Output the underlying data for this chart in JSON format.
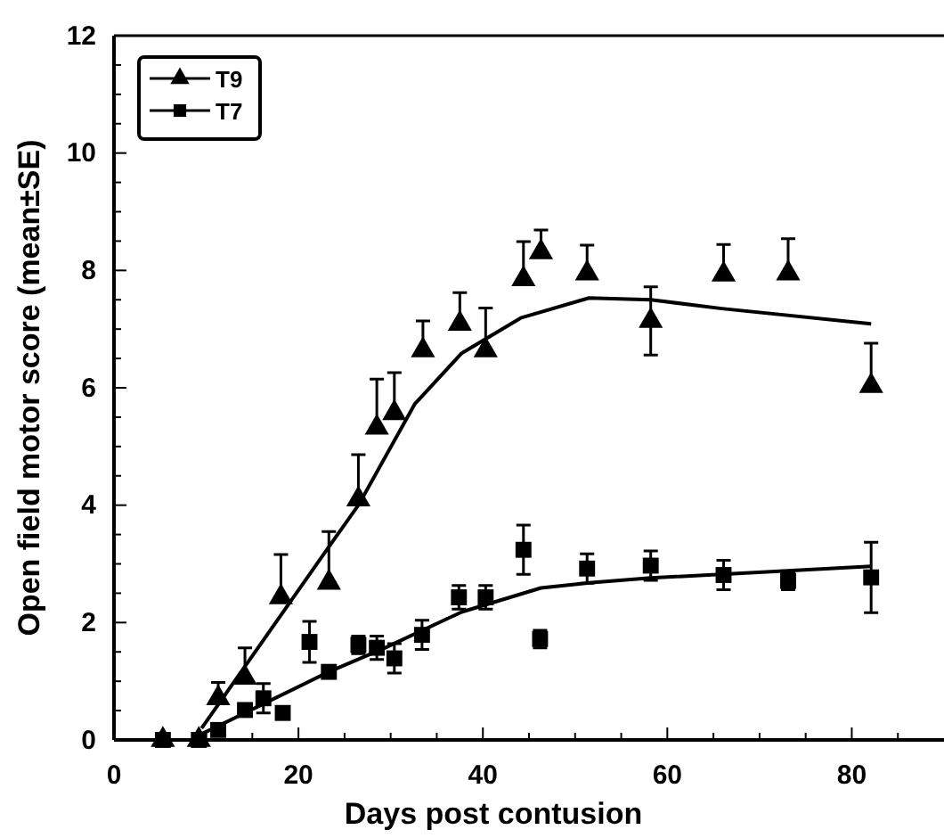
{
  "chart_data": {
    "type": "scatter",
    "xlabel": "Days post contusion",
    "ylabel": "Open field motor score (mean±SE)",
    "xlim": [
      0,
      90
    ],
    "xticks": [
      0,
      {
        "value": 5,
        "label": null
      },
      {
        "value": 10,
        "label": null
      },
      {
        "value": 15,
        "label": null
      },
      20,
      {
        "value": 25,
        "label": null
      },
      {
        "value": 30,
        "label": null
      },
      {
        "value": 35,
        "label": null
      },
      40,
      {
        "value": 45,
        "label": null
      },
      {
        "value": 50,
        "label": null
      },
      {
        "value": 55,
        "label": null
      },
      60,
      {
        "value": 65,
        "label": null
      },
      {
        "value": 70,
        "label": null
      },
      {
        "value": 75,
        "label": null
      },
      80,
      {
        "value": 85,
        "label": null
      }
    ],
    "ylim": [
      0,
      12
    ],
    "yticks": [
      0,
      {
        "value": 0.5,
        "label": null
      },
      {
        "value": 1,
        "label": null
      },
      {
        "value": 1.5,
        "label": null
      },
      2,
      {
        "value": 2.5,
        "label": null
      },
      {
        "value": 3,
        "label": null
      },
      {
        "value": 3.5,
        "label": null
      },
      4,
      {
        "value": 4.5,
        "label": null
      },
      {
        "value": 5,
        "label": null
      },
      {
        "value": 5.5,
        "label": null
      },
      6,
      {
        "value": 6.5,
        "label": null
      },
      {
        "value": 7,
        "label": null
      },
      {
        "value": 7.5,
        "label": null
      },
      8,
      {
        "value": 8.5,
        "label": null
      },
      {
        "value": 9,
        "label": null
      },
      {
        "value": 9.5,
        "label": null
      },
      10,
      {
        "value": 10.5,
        "label": null
      },
      {
        "value": 11,
        "label": null
      },
      {
        "value": 11.5,
        "label": null
      },
      12
    ],
    "legend": "top left",
    "grid": false,
    "series": [
      {
        "name": "T9",
        "marker": "triangle",
        "color": "#000000",
        "x": [
          5.3,
          9.2,
          11.3,
          14.2,
          18.1,
          23.3,
          26.5,
          28.5,
          30.4,
          33.5,
          37.5,
          40.3,
          44.4,
          46.3,
          51.3,
          58.2,
          66.1,
          73.1,
          82.1
        ],
        "values": [
          0,
          0,
          0.71,
          1.06,
          2.43,
          2.68,
          4.1,
          5.32,
          5.57,
          6.64,
          7.09,
          6.64,
          7.85,
          8.31,
          7.95,
          7.14,
          7.93,
          7.95,
          6.03
        ],
        "errors": [
          null,
          null,
          [
            0.71,
            0.98
          ],
          [
            1.06,
            1.57
          ],
          [
            2.43,
            3.16
          ],
          [
            2.68,
            3.55
          ],
          [
            4.1,
            4.86
          ],
          [
            5.32,
            6.15
          ],
          [
            5.57,
            6.26
          ],
          [
            6.64,
            7.14
          ],
          [
            7.09,
            7.62
          ],
          [
            6.64,
            7.36
          ],
          [
            7.85,
            8.49
          ],
          [
            8.31,
            8.69
          ],
          [
            7.95,
            8.43
          ],
          [
            6.56,
            7.72
          ],
          [
            7.93,
            8.44
          ],
          [
            7.95,
            8.54
          ],
          [
            6.03,
            6.76
          ]
        ]
      },
      {
        "name": "T7",
        "marker": "square",
        "color": "#000000",
        "x": [
          5.3,
          9.2,
          11.3,
          14.2,
          16.2,
          18.3,
          21.2,
          23.3,
          26.5,
          28.5,
          30.4,
          33.4,
          37.4,
          40.3,
          44.4,
          46.2,
          51.3,
          58.2,
          66.1,
          73.1,
          82.1
        ],
        "values": [
          0,
          0,
          0.17,
          0.51,
          0.71,
          0.46,
          1.67,
          1.16,
          1.62,
          1.57,
          1.39,
          1.79,
          2.43,
          2.43,
          3.24,
          1.72,
          2.92,
          2.97,
          2.81,
          2.71,
          2.77
        ],
        "errors": [
          null,
          null,
          null,
          null,
          0.25,
          null,
          0.35,
          null,
          0.15,
          0.2,
          0.25,
          0.25,
          0.2,
          0.2,
          0.42,
          0.15,
          0.25,
          0.25,
          0.25,
          0.15,
          0.6
        ]
      },
      {
        "type": "line",
        "marker": "none",
        "color": "#000000",
        "x": [
          9.5,
          23.3,
          26.5,
          32.6,
          37.7,
          44.1,
          51.5,
          58.2,
          65.9,
          82.1
        ],
        "values": [
          0.2,
          3.29,
          4.0,
          5.72,
          6.59,
          7.19,
          7.53,
          7.5,
          7.35,
          7.09
        ]
      },
      {
        "type": "line",
        "marker": "none",
        "color": "#000000",
        "x": [
          9.5,
          23.3,
          29.4,
          37.7,
          46.3,
          51.8,
          58.2,
          82.1
        ],
        "values": [
          0.1,
          1.16,
          1.57,
          2.18,
          2.59,
          2.68,
          2.76,
          2.96
        ]
      }
    ]
  }
}
